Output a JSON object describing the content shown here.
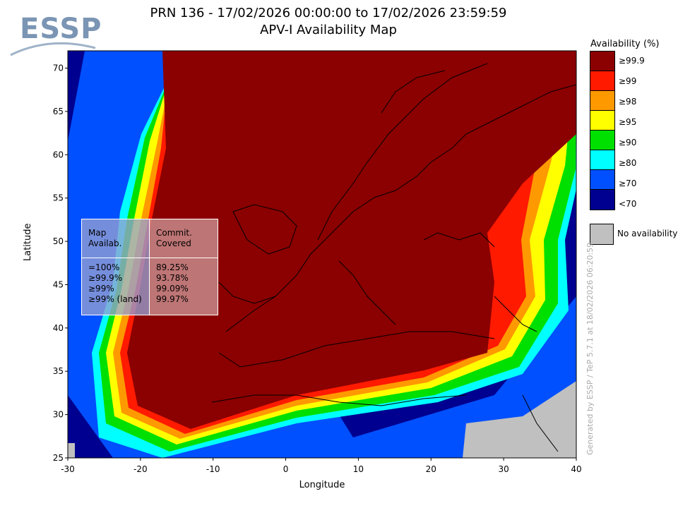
{
  "logo": {
    "text": "ESSP"
  },
  "title": {
    "line1": "PRN 136 - 17/02/2026 00:00:00 to 17/02/2026 23:59:59",
    "line2": "APV-I Availability Map"
  },
  "axes": {
    "xlabel": "Longitude",
    "ylabel": "Latitude",
    "x_ticks": [
      "-30",
      "-20",
      "-10",
      "0",
      "10",
      "20",
      "30",
      "40"
    ],
    "y_ticks": [
      "70",
      "65",
      "60",
      "55",
      "50",
      "45",
      "40",
      "35",
      "30",
      "25"
    ],
    "xlim": [
      -30,
      40
    ],
    "ylim": [
      25,
      72
    ]
  },
  "legend": {
    "title": "Availability (%)",
    "items": [
      {
        "label": "≥99.9",
        "color": "#8b0000"
      },
      {
        "label": "≥99",
        "color": "#ff1a00"
      },
      {
        "label": "≥98",
        "color": "#ff9900"
      },
      {
        "label": "≥95",
        "color": "#ffff00"
      },
      {
        "label": "≥90",
        "color": "#00e000"
      },
      {
        "label": "≥80",
        "color": "#00ffff"
      },
      {
        "label": "≥70",
        "color": "#0050ff"
      },
      {
        "label": "<70",
        "color": "#000090"
      }
    ],
    "no_availability": {
      "label": "No availability",
      "color": "#c0c0c0"
    }
  },
  "stats": {
    "col1_header": "Map\nAvailab.",
    "col2_header": "Commit.\nCovered",
    "rows": [
      {
        "level": "=100%",
        "value": "89.25%"
      },
      {
        "level": "≥99.9%",
        "value": "93.78%"
      },
      {
        "level": "≥99%",
        "value": "99.09%"
      },
      {
        "level": "≥99% (land)",
        "value": "99.97%"
      }
    ]
  },
  "credit": "Generated by ESSP / TeP 5.7.1 at 18/02/2026 06:20:59"
}
